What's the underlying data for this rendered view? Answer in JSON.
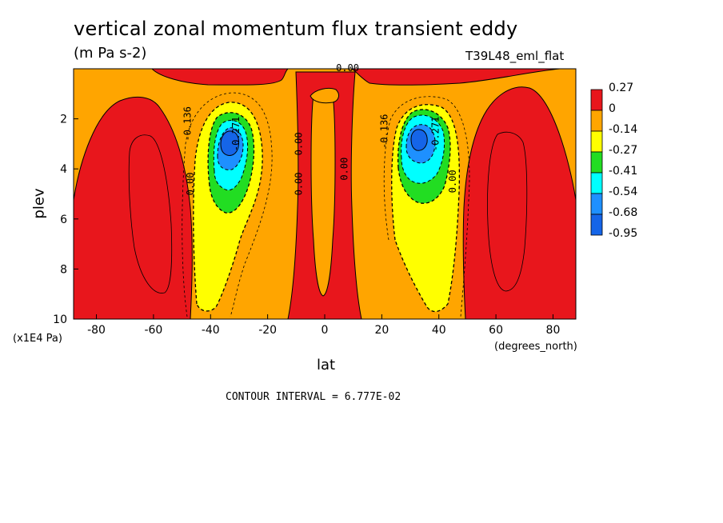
{
  "chart_data": {
    "type": "contour",
    "title": "vertical zonal momentum flux transient eddy",
    "units": "(m Pa s-2)",
    "dataset": "T39L48_eml_flat",
    "xlabel": "lat",
    "xunits": "(degrees_north)",
    "ylabel": "plev",
    "yunits": "(x1E4 Pa)",
    "xlim": [
      -88,
      88
    ],
    "ylim": [
      10,
      0
    ],
    "xticks": [
      "-80",
      "-60",
      "-40",
      "-20",
      "0",
      "20",
      "40",
      "60",
      "80"
    ],
    "yticks": [
      "2",
      "4",
      "6",
      "8",
      "10"
    ],
    "contour_interval_text": "CONTOUR INTERVAL = 6.777E-02",
    "colorbar_labels": [
      "0.27",
      "0",
      "-0.14",
      "-0.27",
      "-0.41",
      "-0.54",
      "-0.68",
      "-0.95"
    ],
    "colorbar_colors": [
      "#e8161c",
      "#ffa500",
      "#ffff00",
      "#22dd22",
      "#00ffff",
      "#1e90ff",
      "#1565e8"
    ],
    "contour_labels": [
      "0.00",
      "-0.136",
      "-0.271",
      "0.00",
      "0.00",
      "0.00",
      "-0.136",
      "-0.271",
      "0.00",
      "0.00"
    ],
    "features": [
      {
        "name": "southern-minimum",
        "lat": -34,
        "plev": 2.9,
        "min_band": "-0.95"
      },
      {
        "name": "northern-minimum",
        "lat": 33,
        "plev": 2.9,
        "min_band": "-0.95"
      }
    ]
  }
}
